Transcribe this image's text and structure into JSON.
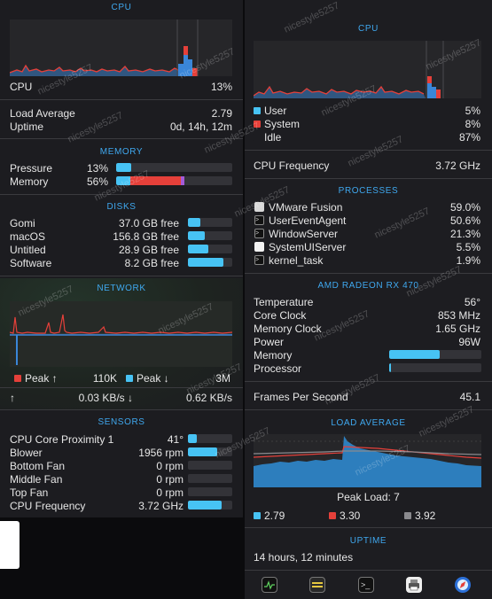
{
  "left": {
    "cpu": {
      "title": "CPU",
      "label": "CPU",
      "value": "13%",
      "load_label": "Load Average",
      "load_value": "2.79",
      "uptime_label": "Uptime",
      "uptime_value": "0d, 14h, 12m"
    },
    "memory": {
      "title": "MEMORY",
      "pressure_label": "Pressure",
      "pressure_value": "13%",
      "pressure_level": 0.13,
      "memory_label": "Memory",
      "memory_value": "56%",
      "memory_level": 0.56
    },
    "disks": {
      "title": "DISKS",
      "items": [
        {
          "name": "Gomi",
          "value": "37.0 GB free",
          "level": 0.27
        },
        {
          "name": "macOS",
          "value": "156.8 GB free",
          "level": 0.38
        },
        {
          "name": "Untitled",
          "value": "28.9 GB free",
          "level": 0.45
        },
        {
          "name": "Software",
          "value": "8.2 GB free",
          "level": 0.8
        }
      ]
    },
    "network": {
      "title": "NETWORK",
      "peak_up_label": "Peak ↑",
      "peak_up_value": "110K",
      "peak_down_label": "Peak ↓",
      "peak_down_value": "3M",
      "up_arrow": "↑",
      "up_rate": "0.03 KB/s ↓",
      "down_rate": "0.62 KB/s"
    },
    "sensors": {
      "title": "SENSORS",
      "items": [
        {
          "name": "CPU Core Proximity 1",
          "value": "41°",
          "level": 0.2
        },
        {
          "name": "Blower",
          "value": "1956 rpm",
          "level": 0.65
        },
        {
          "name": "Bottom Fan",
          "value": "0 rpm",
          "level": 0
        },
        {
          "name": "Middle Fan",
          "value": "0 rpm",
          "level": 0
        },
        {
          "name": "Top Fan",
          "value": "0 rpm",
          "level": 0
        },
        {
          "name": "CPU Frequency",
          "value": "3.72 GHz",
          "level": 0.75
        }
      ]
    }
  },
  "right": {
    "cpu": {
      "title": "CPU",
      "user_label": "User",
      "user_value": "5%",
      "system_label": "System",
      "system_value": "8%",
      "idle_label": "Idle",
      "idle_value": "87%",
      "freq_label": "CPU Frequency",
      "freq_value": "3.72 GHz"
    },
    "processes": {
      "title": "PROCESSES",
      "items": [
        {
          "name": "VMware Fusion",
          "value": "59.0%",
          "icon": "vmware-icon"
        },
        {
          "name": "UserEventAgent",
          "value": "50.6%",
          "icon": "terminal-icon"
        },
        {
          "name": "WindowServer",
          "value": "21.3%",
          "icon": "terminal-icon"
        },
        {
          "name": "SystemUIServer",
          "value": "5.5%",
          "icon": "white-square-icon"
        },
        {
          "name": "kernel_task",
          "value": "1.9%",
          "icon": "terminal-icon"
        }
      ]
    },
    "gpu": {
      "title": "AMD RADEON RX 470",
      "items": [
        {
          "name": "Temperature",
          "value": "56°"
        },
        {
          "name": "Core Clock",
          "value": "853 MHz"
        },
        {
          "name": "Memory Clock",
          "value": "1.65 GHz"
        },
        {
          "name": "Power",
          "value": "96W"
        }
      ],
      "memory_label": "Memory",
      "memory_level": 0.55,
      "processor_label": "Processor",
      "processor_level": 0.01
    },
    "fps_label": "Frames Per Second",
    "fps_value": "45.1",
    "load": {
      "title": "LOAD AVERAGE",
      "peak_label": "Peak Load: 7",
      "l1": "2.79",
      "l5": "3.30",
      "l15": "3.92"
    },
    "uptime": {
      "title": "UPTIME",
      "value": "14 hours, 12 minutes"
    },
    "toolbar": {
      "icons": [
        "activity-monitor-icon",
        "console-icon",
        "terminal-icon",
        "printer-icon",
        "safari-icon"
      ]
    }
  },
  "colors": {
    "accent": "#3fa8ef",
    "bar": "#47c3f4",
    "red": "#e5403a",
    "blue": "#3a86d8",
    "gray": "#8a8a8e"
  },
  "watermark": "nicestyle5257"
}
